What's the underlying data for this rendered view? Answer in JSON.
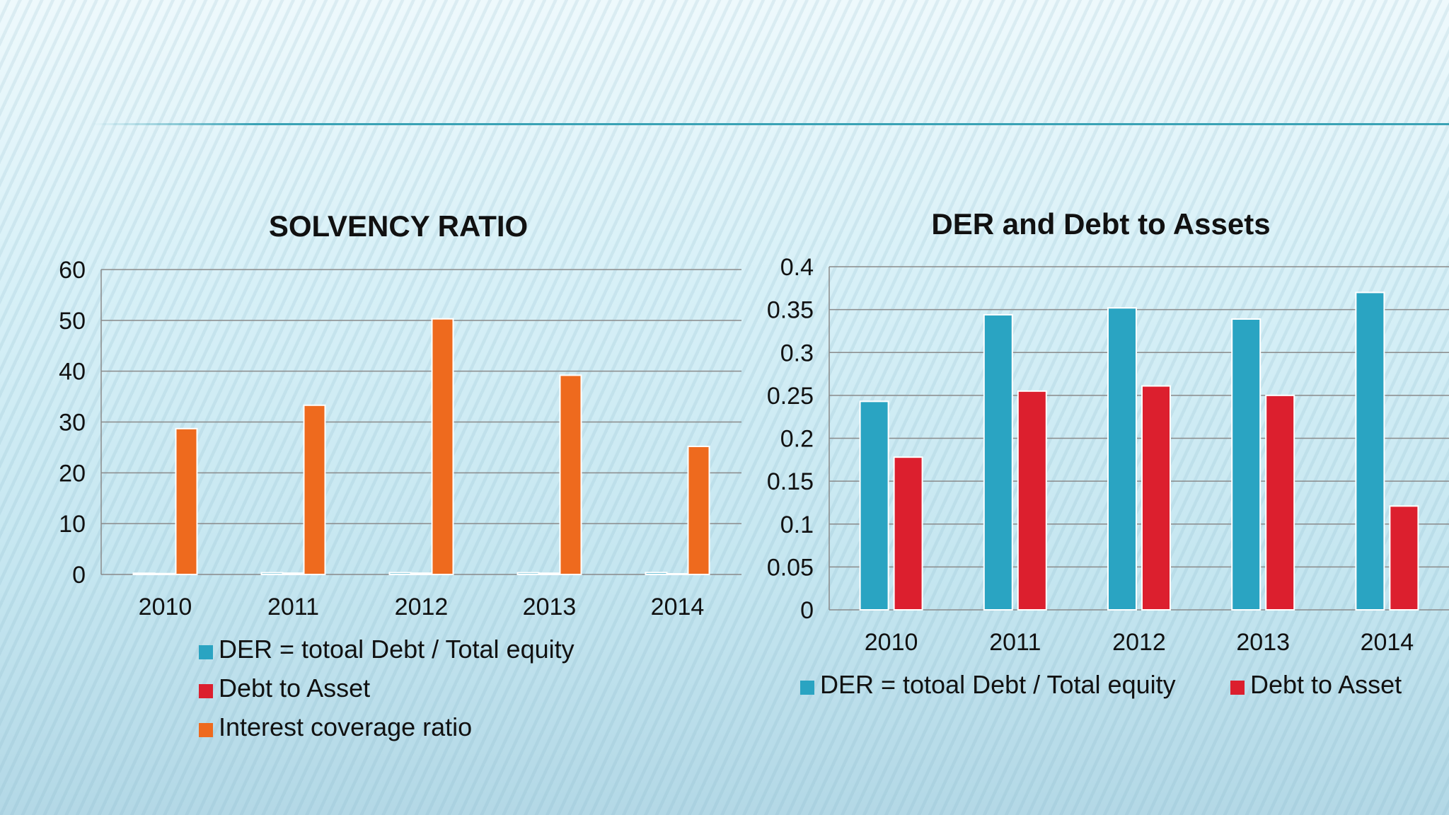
{
  "colors": {
    "der": "#2aa4c2",
    "debt_to_asset": "#dc1f2e",
    "interest_coverage": "#ee6a1e",
    "grid": "#8a8a8a"
  },
  "chart_data": [
    {
      "type": "bar",
      "title": "SOLVENCY RATIO",
      "categories": [
        "2010",
        "2011",
        "2012",
        "2013",
        "2014"
      ],
      "ylim": [
        0,
        60
      ],
      "yticks": [
        "0",
        "10",
        "20",
        "30",
        "40",
        "50",
        "60"
      ],
      "grid": true,
      "legend_position": "bottom",
      "series": [
        {
          "name": "DER  = totoal Debt / Total equity",
          "values": [
            0.24,
            0.34,
            0.35,
            0.34,
            0.37
          ]
        },
        {
          "name": "Debt to Asset",
          "values": [
            0.18,
            0.26,
            0.26,
            0.25,
            0.12
          ]
        },
        {
          "name": "Interest coverage ratio",
          "values": [
            28.7,
            33.3,
            50.3,
            39.2,
            25.2
          ]
        }
      ]
    },
    {
      "type": "bar",
      "title": "DER and Debt to Assets",
      "categories": [
        "2010",
        "2011",
        "2012",
        "2013",
        "2014"
      ],
      "ylim": [
        0,
        0.4
      ],
      "yticks": [
        "0",
        "0.05",
        "0.1",
        "0.15",
        "0.2",
        "0.25",
        "0.3",
        "0.35",
        "0.4"
      ],
      "grid": true,
      "legend_position": "bottom",
      "series": [
        {
          "name": "DER  = totoal Debt / Total equity",
          "values": [
            0.243,
            0.344,
            0.352,
            0.339,
            0.37
          ]
        },
        {
          "name": "Debt to Asset",
          "values": [
            0.178,
            0.255,
            0.261,
            0.25,
            0.121
          ]
        }
      ]
    }
  ]
}
